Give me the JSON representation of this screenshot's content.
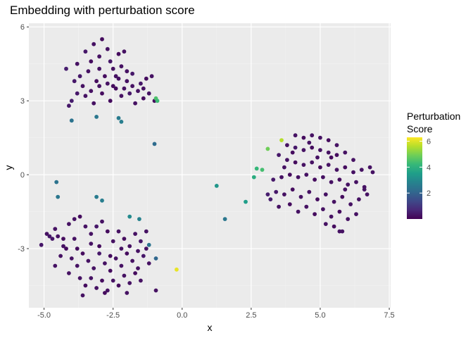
{
  "chart_data": {
    "type": "scatter",
    "title": "Embedding with perturbation score",
    "xlabel": "x",
    "ylabel": "y",
    "xlim": [
      -5.55,
      7.55
    ],
    "ylim": [
      -5.4,
      6.15
    ],
    "x_ticks": [
      -5.0,
      -2.5,
      0.0,
      2.5,
      5.0,
      7.5
    ],
    "x_tick_labels": [
      "-5.0",
      "-2.5",
      "0.0",
      "2.5",
      "5.0",
      "7.5"
    ],
    "y_ticks": [
      -3,
      0,
      3,
      6
    ],
    "y_tick_labels": [
      "-3",
      "0",
      "3",
      "6"
    ],
    "grid": true,
    "background": "#e5e5e5",
    "color_scale": "viridis",
    "legend": {
      "title_line1": "Perturbation",
      "title_line2": "Score",
      "range": [
        0,
        6.3
      ],
      "ticks": [
        2,
        4,
        6
      ],
      "tick_labels": [
        "2",
        "4",
        "6"
      ],
      "placement": "right"
    },
    "points": [
      [
        -3.2,
        5.3,
        0.3
      ],
      [
        -3.5,
        5.0,
        0.4
      ],
      [
        -2.9,
        5.5,
        0.2
      ],
      [
        -3.8,
        4.5,
        0.3
      ],
      [
        -4.2,
        4.3,
        0.5
      ],
      [
        -3.0,
        4.8,
        0.3
      ],
      [
        -2.6,
        4.6,
        0.4
      ],
      [
        -2.3,
        4.9,
        0.2
      ],
      [
        -2.1,
        5.0,
        0.3
      ],
      [
        -3.4,
        4.2,
        0.3
      ],
      [
        -3.7,
        4.0,
        0.4
      ],
      [
        -2.8,
        4.0,
        0.2
      ],
      [
        -2.5,
        4.3,
        0.3
      ],
      [
        -2.2,
        4.4,
        0.3
      ],
      [
        -3.1,
        3.8,
        0.2
      ],
      [
        -3.6,
        3.6,
        0.3
      ],
      [
        -3.9,
        3.8,
        0.4
      ],
      [
        -2.7,
        3.7,
        0.3
      ],
      [
        -2.4,
        3.5,
        0.2
      ],
      [
        -2.0,
        3.8,
        0.3
      ],
      [
        -1.8,
        3.6,
        0.3
      ],
      [
        -1.5,
        3.7,
        0.4
      ],
      [
        -1.3,
        3.9,
        0.2
      ],
      [
        -1.1,
        4.0,
        0.3
      ],
      [
        -3.3,
        3.4,
        0.3
      ],
      [
        -2.9,
        3.3,
        0.2
      ],
      [
        -2.2,
        3.2,
        0.3
      ],
      [
        -1.9,
        3.3,
        0.4
      ],
      [
        -1.6,
        3.4,
        0.3
      ],
      [
        -1.4,
        3.1,
        0.2
      ],
      [
        -1.2,
        3.3,
        0.3
      ],
      [
        -3.5,
        3.2,
        0.3
      ],
      [
        -4.0,
        3.0,
        0.5
      ],
      [
        -4.1,
        2.8,
        0.4
      ],
      [
        -3.2,
        2.9,
        0.3
      ],
      [
        -2.6,
        3.0,
        0.2
      ],
      [
        -1.7,
        2.9,
        0.3
      ],
      [
        -1.0,
        3.0,
        0.2
      ],
      [
        -2.0,
        4.2,
        0.3
      ],
      [
        -2.7,
        5.1,
        0.3
      ],
      [
        -3.3,
        4.6,
        0.2
      ],
      [
        -2.4,
        4.0,
        0.3
      ],
      [
        -1.8,
        4.1,
        0.4
      ],
      [
        -3.0,
        4.3,
        0.3
      ],
      [
        -2.1,
        3.5,
        0.3
      ],
      [
        -3.8,
        3.3,
        0.4
      ],
      [
        -2.5,
        3.6,
        0.2
      ],
      [
        -1.4,
        3.5,
        0.3
      ],
      [
        -3.0,
        3.6,
        0.3
      ],
      [
        -2.3,
        3.9,
        0.3
      ],
      [
        -0.95,
        3.1,
        4.5
      ],
      [
        -0.9,
        3.0,
        4.3
      ],
      [
        -3.1,
        2.35,
        2.5
      ],
      [
        -4.0,
        2.2,
        2.4
      ],
      [
        -2.3,
        2.3,
        2.6
      ],
      [
        -2.2,
        2.15,
        2.7
      ],
      [
        -1.0,
        1.25,
        2.2
      ],
      [
        -4.55,
        -0.3,
        2.4
      ],
      [
        -4.5,
        -0.9,
        2.5
      ],
      [
        -3.1,
        -0.9,
        2.6
      ],
      [
        -2.9,
        -1.05,
        2.7
      ],
      [
        -1.9,
        -1.7,
        3.0
      ],
      [
        -1.55,
        -1.8,
        2.8
      ],
      [
        -1.2,
        -2.85,
        2.4
      ],
      [
        -0.95,
        -3.4,
        2.1
      ],
      [
        -0.2,
        -3.85,
        6.1
      ],
      [
        1.25,
        -0.45,
        3.3
      ],
      [
        1.55,
        -1.8,
        2.5
      ],
      [
        2.3,
        -1.1,
        3.5
      ],
      [
        2.6,
        -0.1,
        3.9
      ],
      [
        2.7,
        0.25,
        4.2
      ],
      [
        2.9,
        0.2,
        4.4
      ],
      [
        3.1,
        1.05,
        4.9
      ],
      [
        3.6,
        1.4,
        5.6
      ],
      [
        -5.1,
        -2.85,
        0.4
      ],
      [
        -4.8,
        -2.5,
        0.4
      ],
      [
        -4.6,
        -2.2,
        0.3
      ],
      [
        -4.5,
        -2.5,
        0.3
      ],
      [
        -4.3,
        -2.6,
        0.2
      ],
      [
        -4.1,
        -2.0,
        0.3
      ],
      [
        -3.9,
        -1.8,
        0.3
      ],
      [
        -3.7,
        -1.7,
        0.2
      ],
      [
        -3.5,
        -2.1,
        0.3
      ],
      [
        -3.3,
        -2.4,
        0.3
      ],
      [
        -3.1,
        -2.1,
        0.4
      ],
      [
        -2.9,
        -1.9,
        0.3
      ],
      [
        -2.7,
        -2.3,
        0.2
      ],
      [
        -2.5,
        -2.7,
        0.3
      ],
      [
        -2.3,
        -2.3,
        0.3
      ],
      [
        -2.1,
        -2.6,
        0.2
      ],
      [
        -1.9,
        -2.9,
        0.3
      ],
      [
        -1.7,
        -2.4,
        0.3
      ],
      [
        -1.5,
        -2.7,
        0.4
      ],
      [
        -1.3,
        -3.0,
        0.3
      ],
      [
        -4.6,
        -3.7,
        0.3
      ],
      [
        -4.4,
        -3.3,
        0.3
      ],
      [
        -4.2,
        -3.0,
        0.2
      ],
      [
        -4.0,
        -3.4,
        0.3
      ],
      [
        -3.8,
        -3.7,
        0.3
      ],
      [
        -3.6,
        -3.2,
        0.2
      ],
      [
        -3.4,
        -3.5,
        0.3
      ],
      [
        -3.2,
        -3.8,
        0.3
      ],
      [
        -3.0,
        -3.2,
        0.4
      ],
      [
        -2.8,
        -3.6,
        0.3
      ],
      [
        -2.6,
        -3.9,
        0.2
      ],
      [
        -2.4,
        -3.4,
        0.3
      ],
      [
        -2.2,
        -3.7,
        0.3
      ],
      [
        -2.0,
        -3.2,
        0.2
      ],
      [
        -1.8,
        -3.5,
        0.3
      ],
      [
        -1.6,
        -3.8,
        0.3
      ],
      [
        -1.4,
        -3.3,
        0.4
      ],
      [
        -1.2,
        -3.6,
        0.3
      ],
      [
        -3.7,
        -4.2,
        0.3
      ],
      [
        -3.5,
        -4.5,
        0.2
      ],
      [
        -3.3,
        -4.2,
        0.3
      ],
      [
        -3.1,
        -4.6,
        0.3
      ],
      [
        -2.9,
        -4.3,
        0.2
      ],
      [
        -2.7,
        -4.7,
        0.3
      ],
      [
        -2.5,
        -4.3,
        0.3
      ],
      [
        -2.3,
        -4.5,
        0.2
      ],
      [
        -2.1,
        -4.1,
        0.3
      ],
      [
        -1.9,
        -4.4,
        0.3
      ],
      [
        -1.7,
        -4.0,
        0.2
      ],
      [
        -1.5,
        -4.3,
        0.3
      ],
      [
        -3.6,
        -4.9,
        0.3
      ],
      [
        -2.8,
        -4.8,
        0.2
      ],
      [
        -0.95,
        -4.7,
        0.3
      ],
      [
        -4.3,
        -2.9,
        0.3
      ],
      [
        -3.9,
        -2.6,
        0.3
      ],
      [
        -3.0,
        -2.9,
        0.2
      ],
      [
        -2.2,
        -3.0,
        0.3
      ],
      [
        -1.6,
        -3.1,
        0.3
      ],
      [
        -4.1,
        -4.0,
        0.3
      ],
      [
        -2.6,
        -3.3,
        0.2
      ],
      [
        -3.3,
        -2.8,
        0.3
      ],
      [
        -4.7,
        -2.6,
        0.4
      ],
      [
        -4.9,
        -2.4,
        0.3
      ],
      [
        -2.0,
        -4.8,
        0.3
      ],
      [
        -1.3,
        -2.3,
        0.3
      ],
      [
        -3.8,
        -3.0,
        0.2
      ],
      [
        4.1,
        1.6,
        0.3
      ],
      [
        4.4,
        1.5,
        0.2
      ],
      [
        4.7,
        1.6,
        0.3
      ],
      [
        5.0,
        1.5,
        0.3
      ],
      [
        5.3,
        1.4,
        0.2
      ],
      [
        5.6,
        1.2,
        0.3
      ],
      [
        3.8,
        1.2,
        0.3
      ],
      [
        4.1,
        1.1,
        0.4
      ],
      [
        4.4,
        1.0,
        0.3
      ],
      [
        4.7,
        1.1,
        0.2
      ],
      [
        5.0,
        1.0,
        0.3
      ],
      [
        5.3,
        0.9,
        0.3
      ],
      [
        5.6,
        0.8,
        0.2
      ],
      [
        5.9,
        0.9,
        0.3
      ],
      [
        6.2,
        0.6,
        0.3
      ],
      [
        3.5,
        0.8,
        0.4
      ],
      [
        3.8,
        0.6,
        0.3
      ],
      [
        4.1,
        0.5,
        0.2
      ],
      [
        4.4,
        0.4,
        0.3
      ],
      [
        4.7,
        0.5,
        0.3
      ],
      [
        5.0,
        0.3,
        0.2
      ],
      [
        5.3,
        0.4,
        0.3
      ],
      [
        5.6,
        0.2,
        0.3
      ],
      [
        5.9,
        0.3,
        0.2
      ],
      [
        6.2,
        0.1,
        0.3
      ],
      [
        6.5,
        0.2,
        0.3
      ],
      [
        6.9,
        0.1,
        0.3
      ],
      [
        3.3,
        -0.2,
        0.4
      ],
      [
        3.6,
        -0.1,
        0.3
      ],
      [
        3.9,
        0.0,
        0.2
      ],
      [
        4.2,
        -0.1,
        0.3
      ],
      [
        4.5,
        0.0,
        0.3
      ],
      [
        4.8,
        -0.2,
        0.2
      ],
      [
        5.1,
        -0.1,
        0.3
      ],
      [
        5.4,
        -0.3,
        0.3
      ],
      [
        5.7,
        -0.2,
        0.2
      ],
      [
        6.0,
        -0.4,
        0.3
      ],
      [
        6.3,
        -0.3,
        0.3
      ],
      [
        6.6,
        -0.5,
        0.3
      ],
      [
        3.4,
        -0.7,
        0.4
      ],
      [
        3.7,
        -0.8,
        0.3
      ],
      [
        4.0,
        -0.6,
        0.2
      ],
      [
        4.3,
        -0.9,
        0.3
      ],
      [
        4.6,
        -0.7,
        0.3
      ],
      [
        4.9,
        -1.0,
        0.2
      ],
      [
        5.2,
        -0.8,
        0.3
      ],
      [
        5.5,
        -1.1,
        0.3
      ],
      [
        5.8,
        -0.9,
        0.2
      ],
      [
        6.1,
        -1.2,
        0.3
      ],
      [
        6.4,
        -1.0,
        0.3
      ],
      [
        3.2,
        -1.0,
        0.5
      ],
      [
        3.5,
        -1.3,
        0.3
      ],
      [
        3.9,
        -1.2,
        0.2
      ],
      [
        4.2,
        -1.5,
        0.3
      ],
      [
        4.5,
        -1.3,
        0.3
      ],
      [
        4.8,
        -1.6,
        0.2
      ],
      [
        5.1,
        -1.4,
        0.3
      ],
      [
        5.4,
        -1.7,
        0.3
      ],
      [
        5.7,
        -1.5,
        0.2
      ],
      [
        6.0,
        -1.8,
        0.3
      ],
      [
        6.3,
        -1.6,
        0.3
      ],
      [
        5.2,
        -2.0,
        0.3
      ],
      [
        5.5,
        -2.1,
        0.2
      ],
      [
        5.8,
        -2.3,
        0.3
      ],
      [
        5.7,
        -2.3,
        0.3
      ],
      [
        6.6,
        -0.6,
        0.3
      ],
      [
        4.0,
        0.9,
        0.2
      ],
      [
        4.6,
        1.3,
        0.3
      ],
      [
        5.4,
        0.7,
        0.2
      ],
      [
        3.7,
        0.3,
        0.3
      ],
      [
        4.9,
        0.7,
        0.3
      ],
      [
        6.7,
        -0.8,
        0.3
      ],
      [
        3.1,
        -0.8,
        0.5
      ],
      [
        6.8,
        0.3,
        0.3
      ],
      [
        5.9,
        -0.6,
        0.3
      ]
    ]
  },
  "colors": {
    "panel_background": "#ebebeb",
    "grid_major": "#ffffff",
    "viridis": [
      "#440154",
      "#482878",
      "#3e4989",
      "#31688e",
      "#26828e",
      "#1f9e89",
      "#35b779",
      "#6ece58",
      "#b5de2b",
      "#fde725"
    ]
  }
}
